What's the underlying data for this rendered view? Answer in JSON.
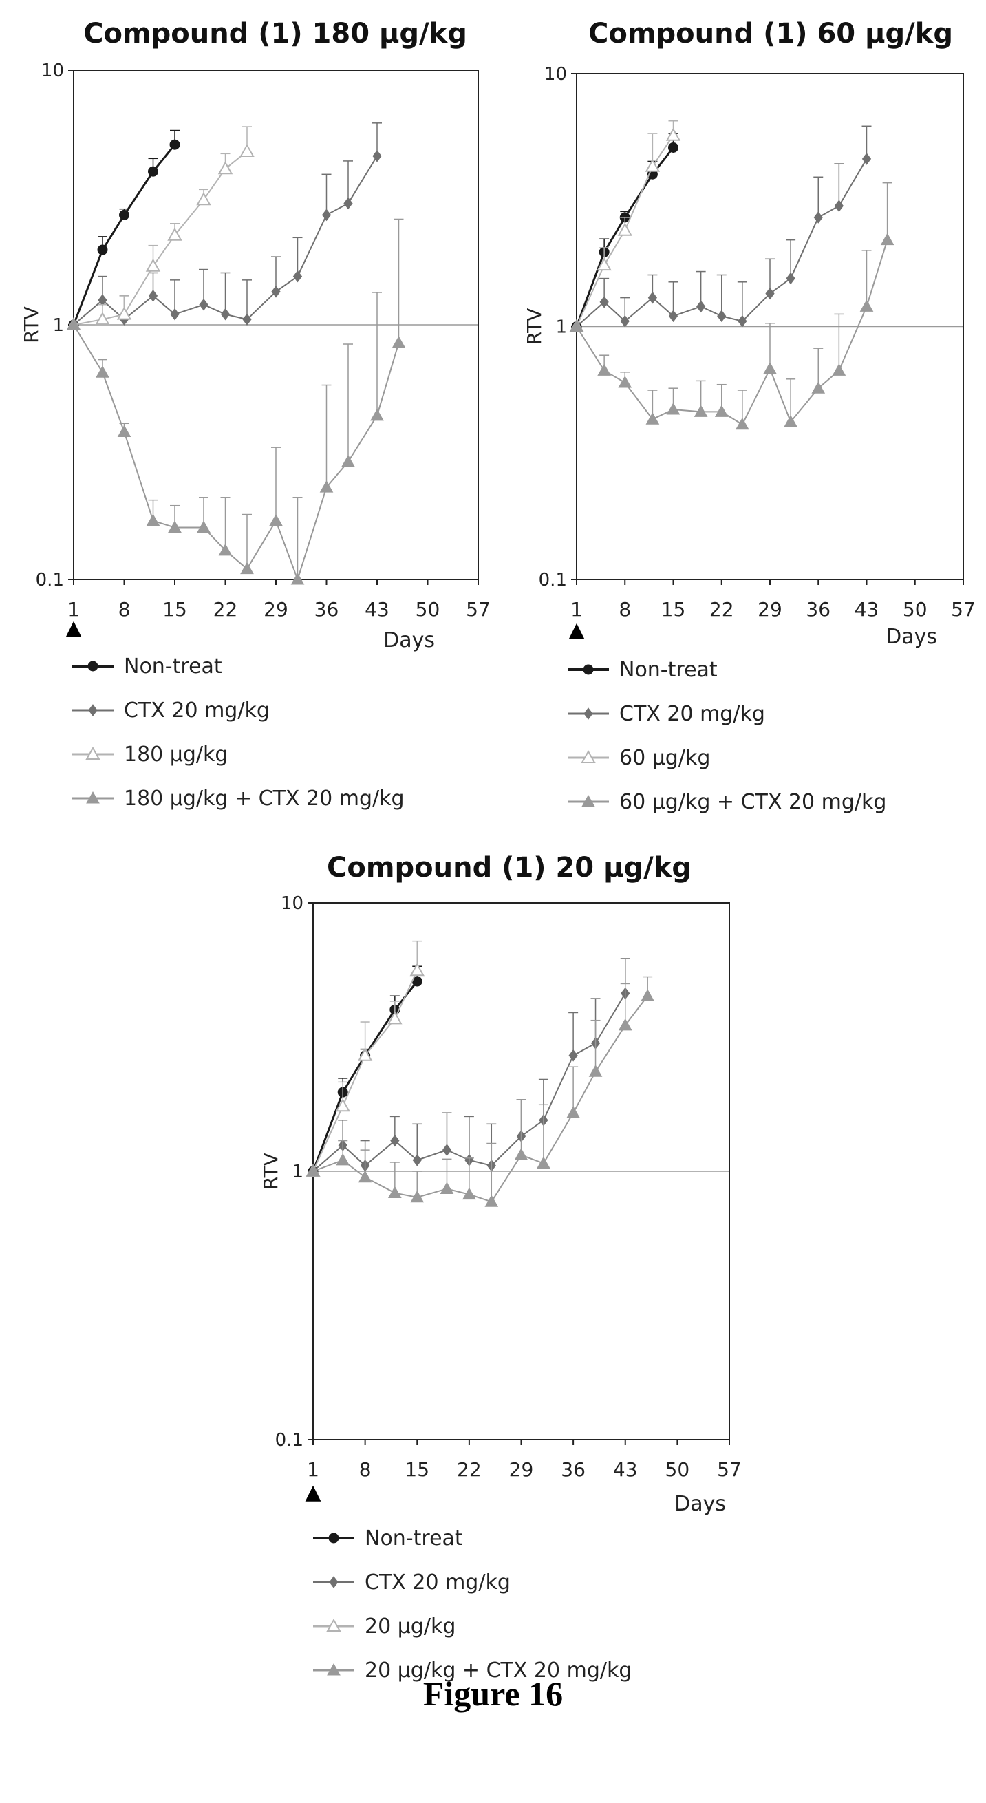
{
  "figure": {
    "caption": "Figure 16"
  },
  "chart_data": [
    {
      "type": "line",
      "title": "Compound (1) 180 µg/kg",
      "xlabel": "Days",
      "ylabel": "RTV",
      "yscale": "log",
      "ylim": [
        0.1,
        10
      ],
      "xlim": [
        1,
        57
      ],
      "xticks": [
        "1",
        "8",
        "15",
        "22",
        "29",
        "36",
        "43",
        "50",
        "57"
      ],
      "yticks": [
        "0.1",
        "1",
        "10"
      ],
      "reference_line": 1,
      "dosing_marker": "▲",
      "grid": false,
      "legend_position": "below",
      "series": [
        {
          "name": "Non-treat",
          "marker": "circle-filled",
          "color": "#1a1a1a",
          "width": 3,
          "x": [
            1,
            5,
            8,
            12,
            15
          ],
          "y": [
            1.0,
            1.97,
            2.7,
            4.0,
            5.1
          ],
          "err": [
            0,
            0.25,
            0.15,
            0.5,
            0.7
          ]
        },
        {
          "name": "CTX 20 mg/kg",
          "marker": "diamond-filled",
          "color": "#707070",
          "width": 2,
          "x": [
            1,
            5,
            8,
            12,
            15,
            19,
            22,
            25,
            29,
            32,
            36,
            39,
            43
          ],
          "y": [
            1.0,
            1.25,
            1.05,
            1.3,
            1.1,
            1.2,
            1.1,
            1.05,
            1.35,
            1.55,
            2.7,
            3.0,
            4.6
          ],
          "err": [
            0,
            0.3,
            0.25,
            0.3,
            0.4,
            0.45,
            0.5,
            0.45,
            0.5,
            0.65,
            1.2,
            1.4,
            1.6
          ]
        },
        {
          "name": "180 µg/kg",
          "marker": "triangle-open",
          "color": "#b3b3b3",
          "width": 2,
          "x": [
            1,
            5,
            8,
            12,
            15,
            19,
            22,
            25
          ],
          "y": [
            1.0,
            1.05,
            1.1,
            1.7,
            2.25,
            3.1,
            4.1,
            4.8
          ],
          "err": [
            0,
            0.15,
            0.2,
            0.35,
            0.25,
            0.3,
            0.6,
            1.2
          ]
        },
        {
          "name": "180 µg/kg + CTX 20 mg/kg",
          "marker": "triangle-filled",
          "color": "#999999",
          "width": 2,
          "x": [
            1,
            5,
            8,
            12,
            15,
            19,
            22,
            25,
            29,
            32,
            36,
            39,
            43,
            46
          ],
          "y": [
            1.0,
            0.65,
            0.38,
            0.17,
            0.16,
            0.16,
            0.13,
            0.11,
            0.17,
            0.1,
            0.23,
            0.29,
            0.44,
            0.85
          ],
          "err": [
            0,
            0.08,
            0.03,
            0.035,
            0.035,
            0.05,
            0.08,
            0.07,
            0.16,
            0.11,
            0.35,
            0.55,
            0.9,
            1.75
          ]
        }
      ]
    },
    {
      "type": "line",
      "title": "Compound (1) 60 µg/kg",
      "xlabel": "Days",
      "ylabel": "RTV",
      "yscale": "log",
      "ylim": [
        0.1,
        10
      ],
      "xlim": [
        1,
        57
      ],
      "xticks": [
        "1",
        "8",
        "15",
        "22",
        "29",
        "36",
        "43",
        "50",
        "57"
      ],
      "yticks": [
        "0.1",
        "1",
        "10"
      ],
      "reference_line": 1,
      "dosing_marker": "▲",
      "grid": false,
      "legend_position": "below",
      "series": [
        {
          "name": "Non-treat",
          "marker": "circle-filled",
          "color": "#1a1a1a",
          "width": 3,
          "x": [
            1,
            5,
            8,
            12,
            15
          ],
          "y": [
            1.0,
            1.97,
            2.7,
            4.0,
            5.1
          ],
          "err": [
            0,
            0.25,
            0.15,
            0.5,
            0.7
          ]
        },
        {
          "name": "CTX 20 mg/kg",
          "marker": "diamond-filled",
          "color": "#707070",
          "width": 2,
          "x": [
            1,
            5,
            8,
            12,
            15,
            19,
            22,
            25,
            29,
            32,
            36,
            39,
            43
          ],
          "y": [
            1.0,
            1.25,
            1.05,
            1.3,
            1.1,
            1.2,
            1.1,
            1.05,
            1.35,
            1.55,
            2.7,
            3.0,
            4.6
          ],
          "err": [
            0,
            0.3,
            0.25,
            0.3,
            0.4,
            0.45,
            0.5,
            0.45,
            0.5,
            0.65,
            1.2,
            1.4,
            1.6
          ]
        },
        {
          "name": "60 µg/kg",
          "marker": "triangle-open",
          "color": "#b3b3b3",
          "width": 2,
          "x": [
            1,
            5,
            8,
            12,
            15
          ],
          "y": [
            1.0,
            1.75,
            2.4,
            4.3,
            5.7
          ],
          "err": [
            0,
            0.3,
            0.3,
            1.5,
            0.8
          ]
        },
        {
          "name": "60 µg/kg + CTX 20 mg/kg",
          "marker": "triangle-filled",
          "color": "#999999",
          "width": 2,
          "x": [
            1,
            5,
            8,
            12,
            15,
            19,
            22,
            25,
            29,
            32,
            36,
            39,
            43,
            46
          ],
          "y": [
            1.0,
            0.67,
            0.6,
            0.43,
            0.47,
            0.46,
            0.46,
            0.41,
            0.68,
            0.42,
            0.57,
            0.67,
            1.2,
            2.2
          ],
          "err": [
            0,
            0.1,
            0.06,
            0.13,
            0.1,
            0.15,
            0.13,
            0.15,
            0.35,
            0.2,
            0.25,
            0.45,
            0.8,
            1.5
          ]
        }
      ]
    },
    {
      "type": "line",
      "title": "Compound (1) 20 µg/kg",
      "xlabel": "Days",
      "ylabel": "RTV",
      "yscale": "log",
      "ylim": [
        0.1,
        10
      ],
      "xlim": [
        1,
        57
      ],
      "xticks": [
        "1",
        "8",
        "15",
        "22",
        "29",
        "36",
        "43",
        "50",
        "57"
      ],
      "yticks": [
        "0.1",
        "1",
        "10"
      ],
      "reference_line": 1,
      "dosing_marker": "▲",
      "grid": false,
      "legend_position": "below",
      "series": [
        {
          "name": "Non-treat",
          "marker": "circle-filled",
          "color": "#1a1a1a",
          "width": 3,
          "x": [
            1,
            5,
            8,
            12,
            15
          ],
          "y": [
            1.0,
            1.97,
            2.7,
            4.0,
            5.1
          ],
          "err": [
            0,
            0.25,
            0.15,
            0.5,
            0.7
          ]
        },
        {
          "name": "CTX 20 mg/kg",
          "marker": "diamond-filled",
          "color": "#707070",
          "width": 2,
          "x": [
            1,
            5,
            8,
            12,
            15,
            19,
            22,
            25,
            29,
            32,
            36,
            39,
            43
          ],
          "y": [
            1.0,
            1.25,
            1.05,
            1.3,
            1.1,
            1.2,
            1.1,
            1.05,
            1.35,
            1.55,
            2.7,
            3.0,
            4.6
          ],
          "err": [
            0,
            0.3,
            0.25,
            0.3,
            0.4,
            0.45,
            0.5,
            0.45,
            0.5,
            0.65,
            1.2,
            1.4,
            1.6
          ]
        },
        {
          "name": "20 µg/kg",
          "marker": "triangle-open",
          "color": "#b3b3b3",
          "width": 2,
          "x": [
            1,
            5,
            8,
            12,
            15
          ],
          "y": [
            1.0,
            1.75,
            2.7,
            3.7,
            5.6
          ],
          "err": [
            0,
            0.4,
            0.9,
            0.6,
            1.6
          ]
        },
        {
          "name": "20 µg/kg + CTX 20 mg/kg",
          "marker": "triangle-filled",
          "color": "#999999",
          "width": 2,
          "x": [
            1,
            5,
            8,
            12,
            15,
            19,
            22,
            25,
            29,
            32,
            36,
            39,
            43,
            46
          ],
          "y": [
            1.0,
            1.1,
            0.95,
            0.83,
            0.8,
            0.86,
            0.82,
            0.77,
            1.15,
            1.07,
            1.65,
            2.35,
            3.5,
            4.5
          ],
          "err": [
            0,
            0.2,
            0.25,
            0.25,
            0.2,
            0.25,
            0.3,
            0.5,
            0.7,
            0.7,
            0.8,
            1.3,
            1.5,
            0.8
          ]
        }
      ]
    }
  ]
}
